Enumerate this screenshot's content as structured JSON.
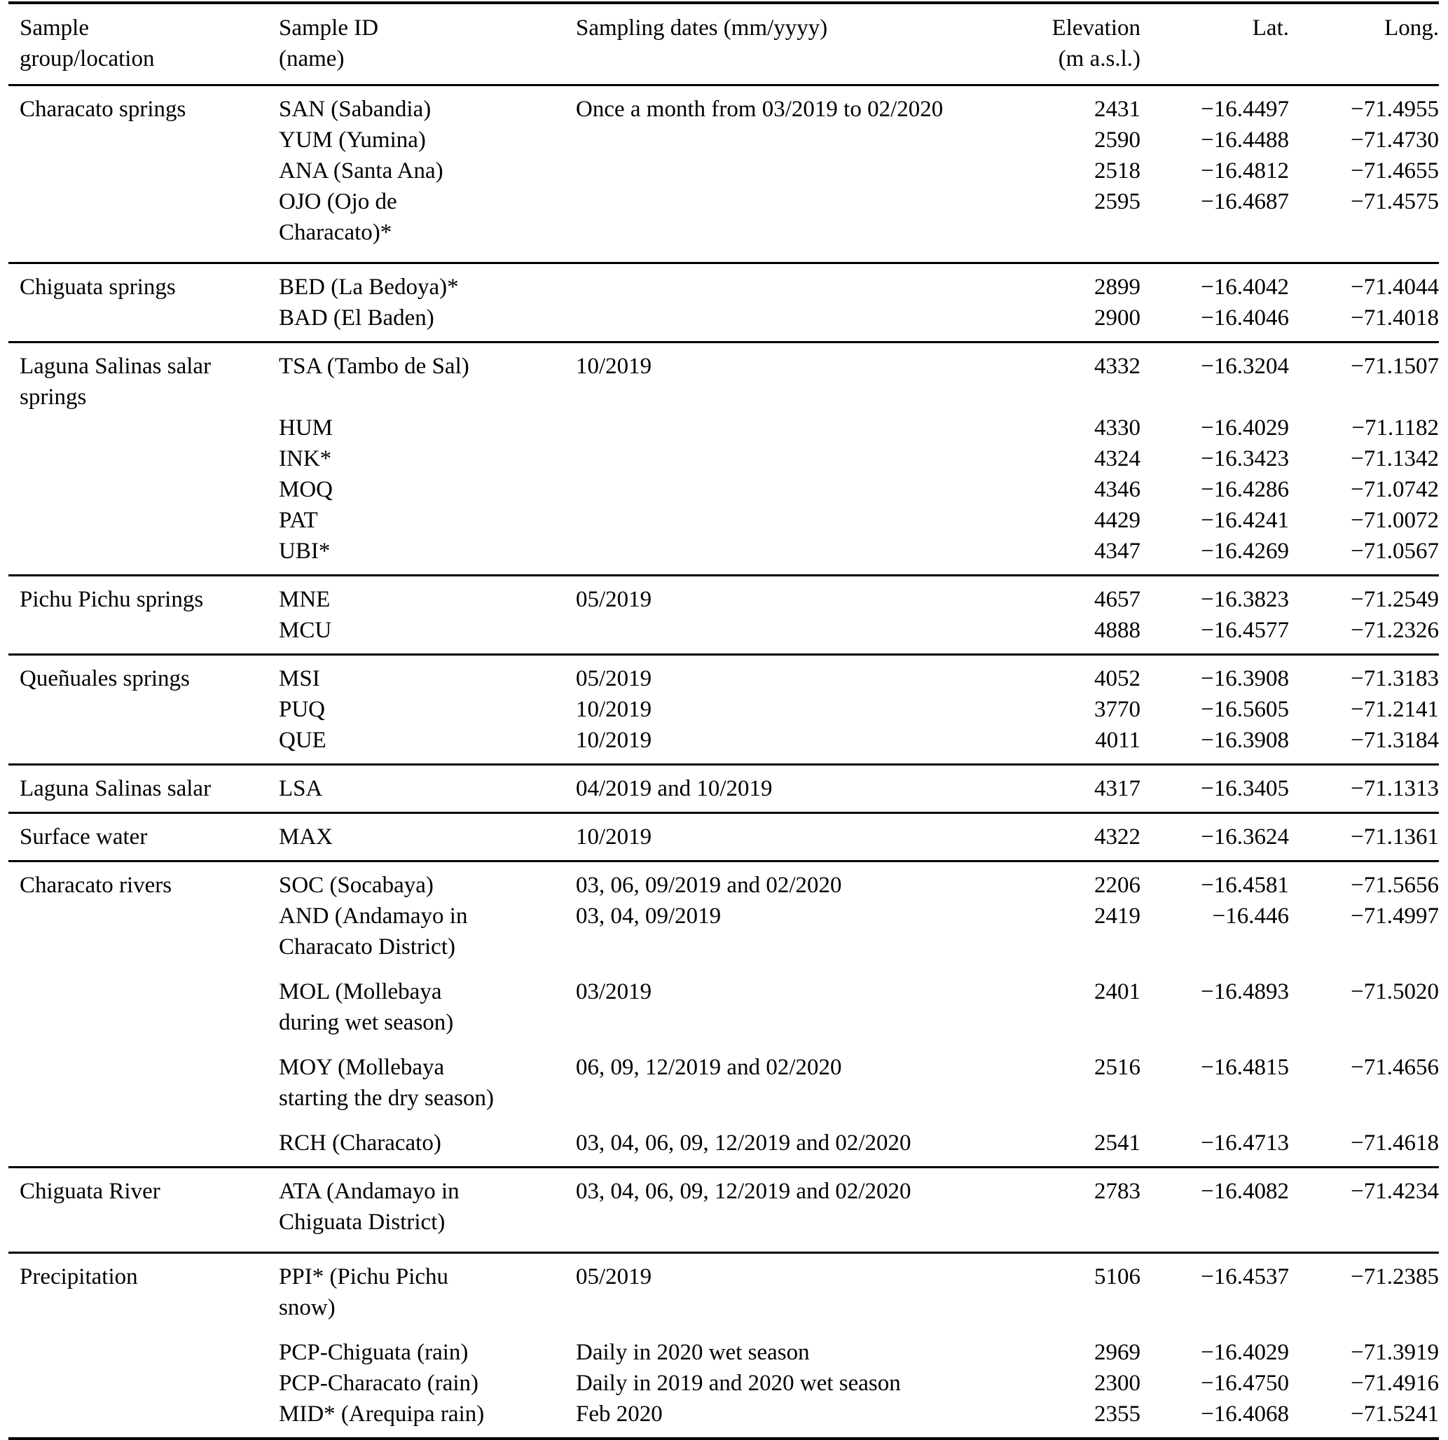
{
  "page": {
    "background_color": "#ffffff",
    "text_color": "#000000"
  },
  "table": {
    "headers": {
      "group": "Sample\ngroup/location",
      "id": "Sample ID\n(name)",
      "dates": "Sampling dates (mm/yyyy)",
      "elevation": "Elevation\n(m a.s.l.)",
      "lat": "Lat.",
      "long": "Long."
    },
    "groups": [
      {
        "group": "Characato springs",
        "rows": [
          {
            "id": "SAN (Sabandia)",
            "dates": "Once a month from 03/2019 to 02/2020",
            "elevation": "2431",
            "lat": "−16.4497",
            "long": "−71.4955"
          },
          {
            "id": "YUM (Yumina)",
            "dates": "",
            "elevation": "2590",
            "lat": "−16.4488",
            "long": "−71.4730"
          },
          {
            "id": "ANA (Santa Ana)",
            "dates": "",
            "elevation": "2518",
            "lat": "−16.4812",
            "long": "−71.4655"
          },
          {
            "id": "OJO (Ojo de\nCharacato)*",
            "dates": "",
            "elevation": "2595",
            "lat": "−16.4687",
            "long": "−71.4575"
          }
        ]
      },
      {
        "group": "Chiguata springs",
        "rows": [
          {
            "id": "BED (La Bedoya)*",
            "dates": "",
            "elevation": "2899",
            "lat": "−16.4042",
            "long": "−71.4044"
          },
          {
            "id": "BAD (El Baden)",
            "dates": "",
            "elevation": "2900",
            "lat": "−16.4046",
            "long": "−71.4018"
          }
        ]
      },
      {
        "group": "Laguna Salinas salar\nsprings",
        "rows": [
          {
            "id": "TSA (Tambo de Sal)",
            "dates": "10/2019",
            "elevation": "4332",
            "lat": "−16.3204",
            "long": "−71.1507"
          },
          {
            "id": "HUM",
            "dates": "",
            "elevation": "4330",
            "lat": "−16.4029",
            "long": "−71.1182"
          },
          {
            "id": "INK*",
            "dates": "",
            "elevation": "4324",
            "lat": "−16.3423",
            "long": "−71.1342"
          },
          {
            "id": "MOQ",
            "dates": "",
            "elevation": "4346",
            "lat": "−16.4286",
            "long": "−71.0742"
          },
          {
            "id": "PAT",
            "dates": "",
            "elevation": "4429",
            "lat": "−16.4241",
            "long": "−71.0072"
          },
          {
            "id": "UBI*",
            "dates": "",
            "elevation": "4347",
            "lat": "−16.4269",
            "long": "−71.0567"
          }
        ]
      },
      {
        "group": "Pichu Pichu springs",
        "rows": [
          {
            "id": "MNE",
            "dates": "05/2019",
            "elevation": "4657",
            "lat": "−16.3823",
            "long": "−71.2549"
          },
          {
            "id": "MCU",
            "dates": "",
            "elevation": "4888",
            "lat": "−16.4577",
            "long": "−71.2326"
          }
        ]
      },
      {
        "group": "Queñuales springs",
        "rows": [
          {
            "id": "MSI",
            "dates": "05/2019",
            "elevation": "4052",
            "lat": "−16.3908",
            "long": "−71.3183"
          },
          {
            "id": "PUQ",
            "dates": "10/2019",
            "elevation": "3770",
            "lat": "−16.5605",
            "long": "−71.2141"
          },
          {
            "id": "QUE",
            "dates": "10/2019",
            "elevation": "4011",
            "lat": "−16.3908",
            "long": "−71.3184"
          }
        ]
      },
      {
        "group": "Laguna Salinas salar",
        "rows": [
          {
            "id": "LSA",
            "dates": "04/2019 and 10/2019",
            "elevation": "4317",
            "lat": "−16.3405",
            "long": "−71.1313"
          }
        ]
      },
      {
        "group": "Surface water",
        "rows": [
          {
            "id": "MAX",
            "dates": "10/2019",
            "elevation": "4322",
            "lat": "−16.3624",
            "long": "−71.1361"
          }
        ]
      },
      {
        "group": "Characato rivers",
        "rows": [
          {
            "id": "SOC (Socabaya)",
            "dates": "03, 06, 09/2019 and 02/2020",
            "elevation": "2206",
            "lat": "−16.4581",
            "long": "−71.5656"
          },
          {
            "id": "AND (Andamayo in\nCharacato District)",
            "dates": "03, 04, 09/2019",
            "elevation": "2419",
            "lat": "−16.446",
            "long": "−71.4997"
          },
          {
            "id": "MOL (Mollebaya\nduring wet season)",
            "dates": "03/2019",
            "elevation": "2401",
            "lat": "−16.4893",
            "long": "−71.5020"
          },
          {
            "id": "MOY (Mollebaya\nstarting the dry season)",
            "dates": "06, 09, 12/2019 and 02/2020",
            "elevation": "2516",
            "lat": "−16.4815",
            "long": "−71.4656"
          },
          {
            "id": "RCH (Characato)",
            "dates": "03, 04, 06, 09, 12/2019 and 02/2020",
            "elevation": "2541",
            "lat": "−16.4713",
            "long": "−71.4618"
          }
        ]
      },
      {
        "group": "Chiguata River",
        "rows": [
          {
            "id": "ATA (Andamayo in\nChiguata District)",
            "dates": "03, 04, 06, 09, 12/2019 and 02/2020",
            "elevation": "2783",
            "lat": "−16.4082",
            "long": "−71.4234"
          }
        ]
      },
      {
        "group": "Precipitation",
        "rows": [
          {
            "id": "PPI* (Pichu Pichu\nsnow)",
            "dates": "05/2019",
            "elevation": "5106",
            "lat": "−16.4537",
            "long": "−71.2385"
          },
          {
            "id": "PCP-Chiguata (rain)",
            "dates": "Daily in 2020 wet season",
            "elevation": "2969",
            "lat": "−16.4029",
            "long": "−71.3919"
          },
          {
            "id": "PCP-Characato (rain)",
            "dates": "Daily in 2019 and 2020 wet season",
            "elevation": "2300",
            "lat": "−16.4750",
            "long": "−71.4916"
          },
          {
            "id": "MID* (Arequipa rain)",
            "dates": "Feb 2020",
            "elevation": "2355",
            "lat": "−16.4068",
            "long": "−71.5241"
          }
        ]
      }
    ]
  }
}
